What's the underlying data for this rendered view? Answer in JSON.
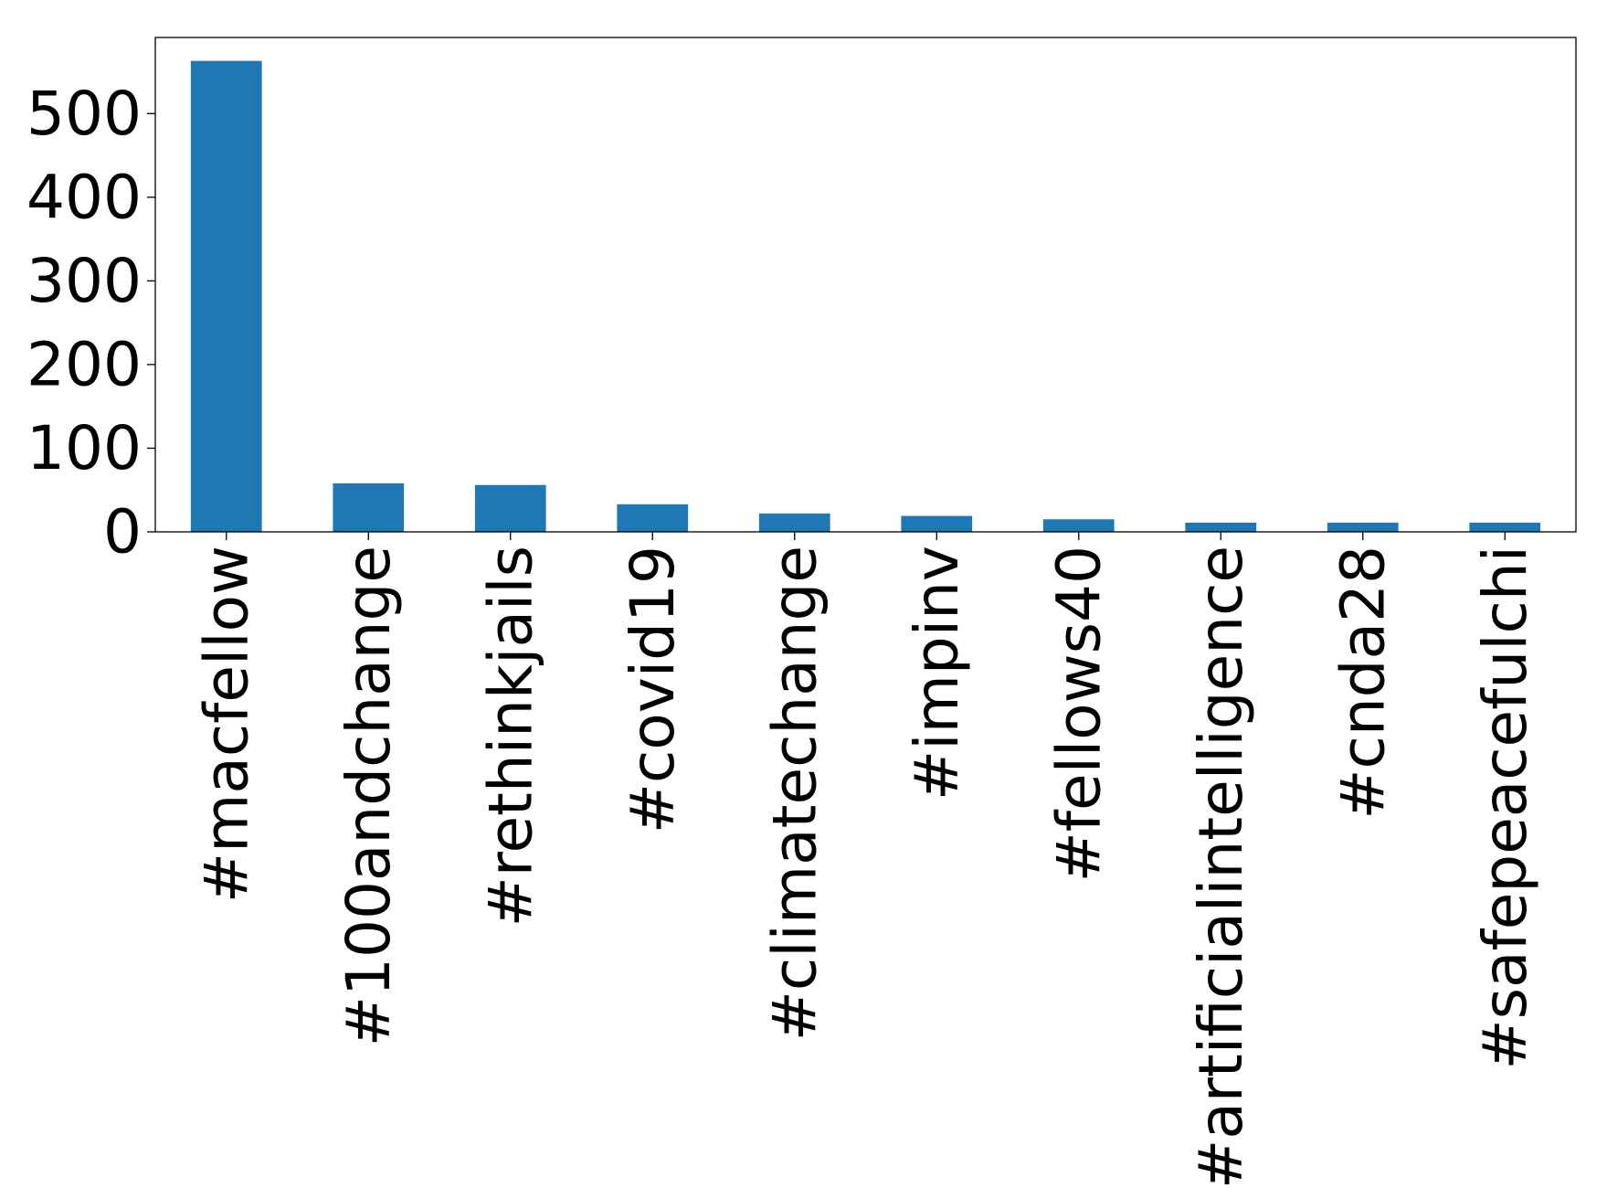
{
  "chart_data": {
    "type": "bar",
    "title": "",
    "xlabel": "",
    "ylabel": "",
    "categories": [
      "#macfellow",
      "#100andchange",
      "#rethinkjails",
      "#covid19",
      "#climatechange",
      "#impinv",
      "#fellows40",
      "#artificialintelligence",
      "#cnda28",
      "#safepeacefulchi"
    ],
    "values": [
      563,
      58,
      56,
      33,
      22,
      19,
      15,
      11,
      11,
      11
    ],
    "ylim": [
      0,
      591
    ],
    "yticks": [
      0,
      100,
      200,
      300,
      400,
      500
    ],
    "grid": false,
    "legend": "none",
    "colors": {
      "bar": "#1f77b4",
      "axis": "#000000",
      "background": "#ffffff"
    }
  }
}
